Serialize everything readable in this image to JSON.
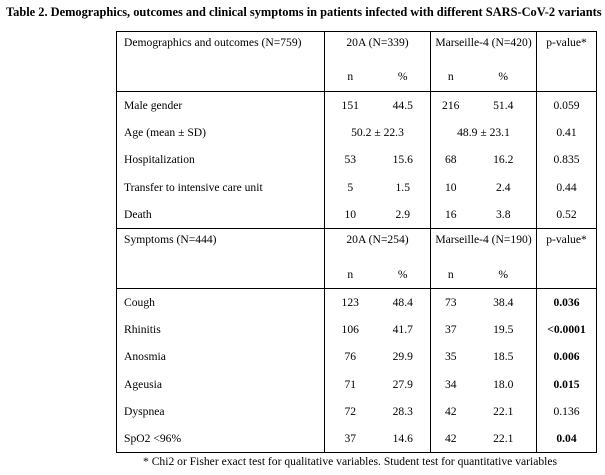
{
  "title": "Table 2. Demographics, outcomes and clinical symptoms in patients infected with different SARS-CoV-2 variants",
  "section1": {
    "header": {
      "label": "Demographics and outcomes (N=759)",
      "group1": "20A (N=339)",
      "group2": "Marseille-4 (N=420)",
      "pvalue": "p-value*"
    },
    "subheader": {
      "n": "n",
      "pct": "%"
    },
    "rows": [
      {
        "label": "Male gender",
        "n1": "151",
        "p1": "44.5",
        "n2": "216",
        "p2": "51.4",
        "pvalue": "0.059",
        "bold": false
      },
      {
        "label": "Age (mean ± SD)",
        "merged1": "50.2 ± 22.3",
        "merged2": "48.9 ± 23.1",
        "pvalue": "0.41",
        "bold": false
      },
      {
        "label": "Hospitalization",
        "n1": "53",
        "p1": "15.6",
        "n2": "68",
        "p2": "16.2",
        "pvalue": "0.835",
        "bold": false
      },
      {
        "label": "Transfer to intensive care unit",
        "n1": "5",
        "p1": "1.5",
        "n2": "10",
        "p2": "2.4",
        "pvalue": "0.44",
        "bold": false
      },
      {
        "label": "Death",
        "n1": "10",
        "p1": "2.9",
        "n2": "16",
        "p2": "3.8",
        "pvalue": "0.52",
        "bold": false
      }
    ]
  },
  "section2": {
    "header": {
      "label": "Symptoms (N=444)",
      "group1": "20A (N=254)",
      "group2": "Marseille-4 (N=190)",
      "pvalue": "p-value*"
    },
    "subheader": {
      "n": "n",
      "pct": "%"
    },
    "rows": [
      {
        "label": "Cough",
        "n1": "123",
        "p1": "48.4",
        "n2": "73",
        "p2": "38.4",
        "pvalue": "0.036",
        "bold": true
      },
      {
        "label": "Rhinitis",
        "n1": "106",
        "p1": "41.7",
        "n2": "37",
        "p2": "19.5",
        "pvalue": "<0.0001",
        "bold": true
      },
      {
        "label": "Anosmia",
        "n1": "76",
        "p1": "29.9",
        "n2": "35",
        "p2": "18.5",
        "pvalue": "0.006",
        "bold": true
      },
      {
        "label": "Ageusia",
        "n1": "71",
        "p1": "27.9",
        "n2": "34",
        "p2": "18.0",
        "pvalue": "0.015",
        "bold": true
      },
      {
        "label": "Dyspnea",
        "n1": "72",
        "p1": "28.3",
        "n2": "42",
        "p2": "22.1",
        "pvalue": "0.136",
        "bold": false
      },
      {
        "label": "SpO2 <96%",
        "n1": "37",
        "p1": "14.6",
        "n2": "42",
        "p2": "22.1",
        "pvalue": "0.04",
        "bold": true
      }
    ]
  },
  "footnote": "* Chi2 or Fisher exact test for qualitative variables. Student test for quantitative variables"
}
